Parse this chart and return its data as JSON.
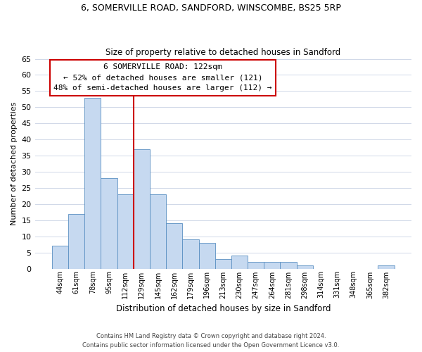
{
  "title1": "6, SOMERVILLE ROAD, SANDFORD, WINSCOMBE, BS25 5RP",
  "title2": "Size of property relative to detached houses in Sandford",
  "xlabel": "Distribution of detached houses by size in Sandford",
  "ylabel": "Number of detached properties",
  "bin_labels": [
    "44sqm",
    "61sqm",
    "78sqm",
    "95sqm",
    "112sqm",
    "129sqm",
    "145sqm",
    "162sqm",
    "179sqm",
    "196sqm",
    "213sqm",
    "230sqm",
    "247sqm",
    "264sqm",
    "281sqm",
    "298sqm",
    "314sqm",
    "331sqm",
    "348sqm",
    "365sqm",
    "382sqm"
  ],
  "bar_heights": [
    7,
    17,
    53,
    28,
    23,
    37,
    23,
    14,
    9,
    8,
    3,
    4,
    2,
    2,
    2,
    1,
    0,
    0,
    0,
    0,
    1
  ],
  "bar_color": "#c6d9f0",
  "bar_edge_color": "#5a8fc2",
  "vline_pos": 4.5,
  "vline_color": "#cc0000",
  "annotation_title": "6 SOMERVILLE ROAD: 122sqm",
  "annotation_line1": "← 52% of detached houses are smaller (121)",
  "annotation_line2": "48% of semi-detached houses are larger (112) →",
  "annotation_box_color": "#ffffff",
  "annotation_box_edge": "#cc0000",
  "ylim": [
    0,
    65
  ],
  "yticks": [
    0,
    5,
    10,
    15,
    20,
    25,
    30,
    35,
    40,
    45,
    50,
    55,
    60,
    65
  ],
  "footer1": "Contains HM Land Registry data © Crown copyright and database right 2024.",
  "footer2": "Contains public sector information licensed under the Open Government Licence v3.0.",
  "bg_color": "#ffffff",
  "grid_color": "#d0d8e8"
}
